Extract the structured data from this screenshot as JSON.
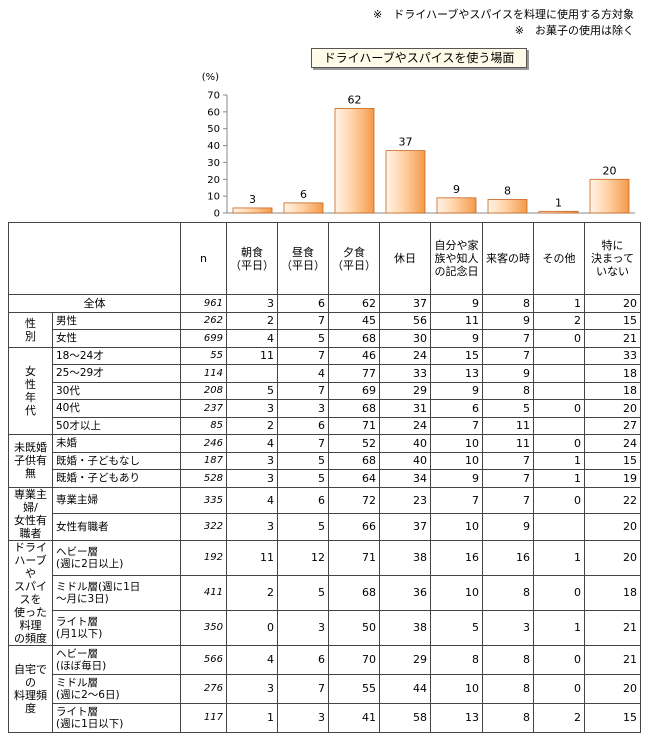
{
  "notes": [
    "※　ドライハーブやスパイスを料理に使用する方対象",
    "※　お菓子の使用は除く"
  ],
  "chart_data": {
    "type": "bar",
    "title": "ドライハーブやスパイスを使う場面",
    "unit_label": "(%)",
    "ylim": [
      0,
      70
    ],
    "yticks": [
      "0",
      "10",
      "20",
      "30",
      "40",
      "50",
      "60",
      "70"
    ],
    "categories": [
      "朝食（平日）",
      "昼食（平日）",
      "夕食（平日）",
      "休日",
      "自分や家族や知人の記念日",
      "来客の時",
      "その他",
      "特に決まっていない"
    ],
    "values": [
      3,
      6,
      62,
      37,
      9,
      8,
      1,
      20
    ],
    "bar_colors": {
      "light": "#fff4e8",
      "dark": "#f39a4a",
      "edge": "#c8641e"
    }
  },
  "table": {
    "header": {
      "n": "n",
      "cols": [
        "朝食\n（平日）",
        "昼食\n（平日）",
        "夕食\n（平日）",
        "休日",
        "自分や家\n族や知人\nの記念日",
        "来客の時",
        "その他",
        "特に\n決まって\nいない"
      ]
    },
    "groups": [
      {
        "label": "",
        "rows": [
          {
            "label": "全体",
            "n": "961",
            "v": [
              "3",
              "6",
              "62",
              "37",
              "9",
              "8",
              "1",
              "20"
            ]
          }
        ]
      },
      {
        "label": "性\n別",
        "rows": [
          {
            "label": "男性",
            "n": "262",
            "v": [
              "2",
              "7",
              "45",
              "56",
              "11",
              "9",
              "2",
              "15"
            ]
          },
          {
            "label": "女性",
            "n": "699",
            "v": [
              "4",
              "5",
              "68",
              "30",
              "9",
              "7",
              "0",
              "21"
            ]
          }
        ]
      },
      {
        "label": "女\n性\n年\n代",
        "rows": [
          {
            "label": "18～24才",
            "n": "55",
            "v": [
              "11",
              "7",
              "46",
              "24",
              "15",
              "7",
              "",
              "33"
            ]
          },
          {
            "label": "25～29才",
            "n": "114",
            "v": [
              "",
              "4",
              "77",
              "33",
              "13",
              "9",
              "",
              "18"
            ]
          },
          {
            "label": "30代",
            "n": "208",
            "v": [
              "5",
              "7",
              "69",
              "29",
              "9",
              "8",
              "",
              "18"
            ]
          },
          {
            "label": "40代",
            "n": "237",
            "v": [
              "3",
              "3",
              "68",
              "31",
              "6",
              "5",
              "0",
              "20"
            ]
          },
          {
            "label": "50才以上",
            "n": "85",
            "v": [
              "2",
              "6",
              "71",
              "24",
              "7",
              "11",
              "",
              "27"
            ]
          }
        ]
      },
      {
        "label": "未既婚\n子供有無",
        "rows": [
          {
            "label": "未婚",
            "n": "246",
            "v": [
              "4",
              "7",
              "52",
              "40",
              "10",
              "11",
              "0",
              "24"
            ]
          },
          {
            "label": "既婚・子どもなし",
            "n": "187",
            "v": [
              "3",
              "5",
              "68",
              "40",
              "10",
              "7",
              "1",
              "15"
            ]
          },
          {
            "label": "既婚・子どもあり",
            "n": "528",
            "v": [
              "3",
              "5",
              "64",
              "34",
              "9",
              "7",
              "1",
              "19"
            ]
          }
        ]
      },
      {
        "label": "専業主婦/\n女性有職者",
        "rows": [
          {
            "label": "専業主婦",
            "n": "335",
            "v": [
              "4",
              "6",
              "72",
              "23",
              "7",
              "7",
              "0",
              "22"
            ]
          },
          {
            "label": "女性有職者",
            "n": "322",
            "v": [
              "3",
              "5",
              "66",
              "37",
              "10",
              "9",
              "",
              "20"
            ]
          }
        ]
      },
      {
        "label": "ドライ\nハーブや\nスパイスを\n使った料理\nの頻度",
        "rows": [
          {
            "label": "ヘビー層\n(週に2日以上)",
            "n": "192",
            "v": [
              "11",
              "12",
              "71",
              "38",
              "16",
              "16",
              "1",
              "20"
            ],
            "tall": true
          },
          {
            "label": "ミドル層(週に1日\n～月に3日)",
            "n": "411",
            "v": [
              "2",
              "5",
              "68",
              "36",
              "10",
              "8",
              "0",
              "18"
            ],
            "tall": true
          },
          {
            "label": "ライト層\n(月1以下)",
            "n": "350",
            "v": [
              "0",
              "3",
              "50",
              "38",
              "5",
              "3",
              "1",
              "21"
            ],
            "tall": true
          }
        ]
      },
      {
        "label": "自宅での\n料理頻度",
        "rows": [
          {
            "label": "ヘビー層\n(ほぼ毎日)",
            "n": "566",
            "v": [
              "4",
              "6",
              "70",
              "29",
              "8",
              "8",
              "0",
              "21"
            ],
            "tall": true
          },
          {
            "label": "ミドル層\n(週に2～6日)",
            "n": "276",
            "v": [
              "3",
              "7",
              "55",
              "44",
              "10",
              "8",
              "0",
              "20"
            ],
            "tall": true
          },
          {
            "label": "ライト層\n(週に1日以下)",
            "n": "117",
            "v": [
              "1",
              "3",
              "41",
              "58",
              "13",
              "8",
              "2",
              "15"
            ],
            "tall": true
          }
        ]
      }
    ]
  }
}
